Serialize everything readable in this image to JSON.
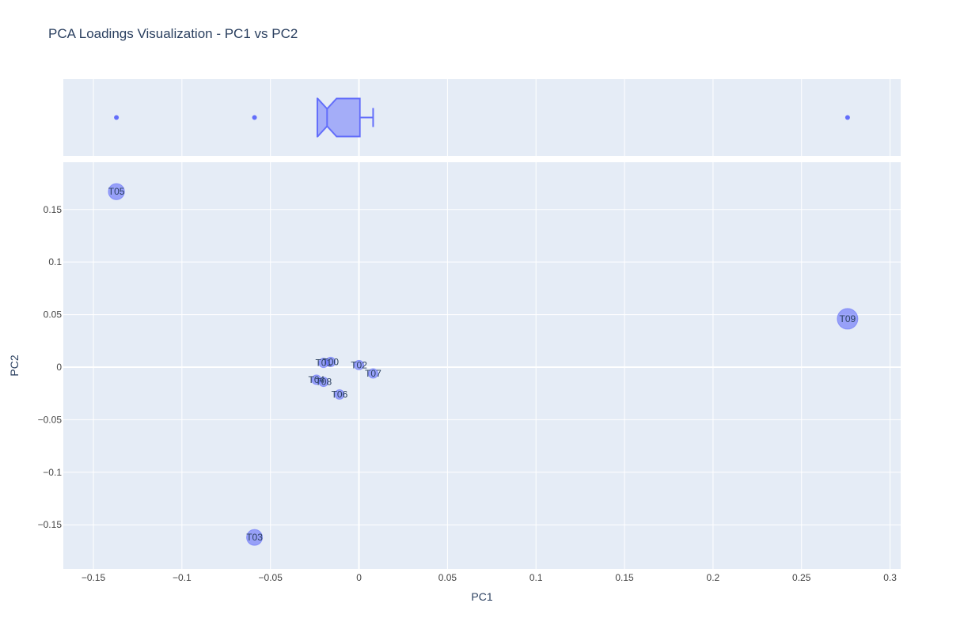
{
  "chart_data": {
    "type": "scatter",
    "title": "PCA Loadings Visualization - PC1 vs PC2",
    "xlabel": "PC1",
    "ylabel": "PC2",
    "xlim": [
      -0.167,
      0.306
    ],
    "ylim": [
      -0.192,
      0.195
    ],
    "x_ticks": [
      -0.15,
      -0.1,
      -0.05,
      0,
      0.05,
      0.1,
      0.15,
      0.2,
      0.25,
      0.3
    ],
    "x_tick_labels": [
      "−0.15",
      "−0.1",
      "−0.05",
      "0",
      "0.05",
      "0.1",
      "0.15",
      "0.2",
      "0.25",
      "0.3"
    ],
    "y_ticks": [
      -0.15,
      -0.1,
      -0.05,
      0,
      0.05,
      0.1,
      0.15
    ],
    "y_tick_labels": [
      "−0.15",
      "−0.1",
      "−0.05",
      "0",
      "0.05",
      "0.1",
      "0.15"
    ],
    "grid": true,
    "points": [
      {
        "label": "T05",
        "x": -0.137,
        "y": 0.167,
        "size": 0.17
      },
      {
        "label": "T03",
        "x": -0.059,
        "y": -0.162,
        "size": 0.165
      },
      {
        "label": "T09",
        "x": 0.276,
        "y": 0.046,
        "size": 0.28
      },
      {
        "label": "T01",
        "x": -0.02,
        "y": 0.004,
        "size": 0.02
      },
      {
        "label": "T00",
        "x": -0.016,
        "y": 0.005,
        "size": 0.017
      },
      {
        "label": "T02",
        "x": 0.0,
        "y": 0.002,
        "size": 0.003
      },
      {
        "label": "T07",
        "x": 0.008,
        "y": -0.006,
        "size": 0.01
      },
      {
        "label": "T04",
        "x": -0.024,
        "y": -0.012,
        "size": 0.027
      },
      {
        "label": "T08",
        "x": -0.02,
        "y": -0.014,
        "size": 0.024
      },
      {
        "label": "T06",
        "x": -0.011,
        "y": -0.026,
        "size": 0.028
      }
    ],
    "marginal_box": {
      "orientation": "horizontal",
      "notched": true,
      "q1": -0.0235,
      "median": -0.018,
      "q3": 0.0005,
      "lower_fence": -0.0235,
      "upper_fence": 0.008,
      "outliers": [
        -0.137,
        -0.059,
        0.276
      ]
    },
    "colors": {
      "marker": "#636efa",
      "plot_bg": "#e5ecf6",
      "grid": "#ffffff",
      "text": "#2a3f5f",
      "tick_text": "#444444"
    }
  }
}
